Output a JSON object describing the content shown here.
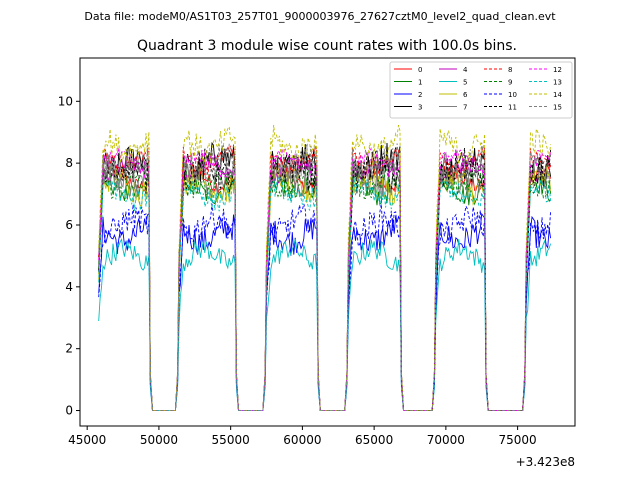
{
  "chart_data": {
    "type": "line",
    "suptitle": "Data file: modeM0/AS1T03_257T01_9000003976_27627cztM0_level2_quad_clean.evt",
    "title": "Quadrant 3 module wise count rates with 100.0s bins.",
    "xlabel": "",
    "ylabel": "",
    "x_offset_label": "+3.423e8",
    "xlim": [
      44500,
      79000
    ],
    "ylim": [
      -0.5,
      11.4
    ],
    "x_ticks": [
      45000,
      50000,
      55000,
      60000,
      65000,
      70000,
      75000
    ],
    "x_tick_labels": [
      "45000",
      "50000",
      "55000",
      "60000",
      "65000",
      "70000",
      "75000"
    ],
    "y_ticks": [
      0,
      2,
      4,
      6,
      8,
      10
    ],
    "y_tick_labels": [
      "0",
      "2",
      "4",
      "6",
      "8",
      "10"
    ],
    "segments": [
      {
        "start": 45800,
        "end": 49300
      },
      {
        "start": 51400,
        "end": 55300
      },
      {
        "start": 57500,
        "end": 61000
      },
      {
        "start": 63200,
        "end": 66800
      },
      {
        "start": 69300,
        "end": 72700
      },
      {
        "start": 75600,
        "end": 77300
      }
    ],
    "series": [
      {
        "name": "0",
        "color": "#ff0000",
        "dash": "solid",
        "level": 7.5
      },
      {
        "name": "1",
        "color": "#008000",
        "dash": "solid",
        "level": 7.2
      },
      {
        "name": "2",
        "color": "#0000ff",
        "dash": "solid",
        "level": 5.7
      },
      {
        "name": "3",
        "color": "#000000",
        "dash": "solid",
        "level": 8.0
      },
      {
        "name": "4",
        "color": "#bf00bf",
        "dash": "solid",
        "level": 7.8
      },
      {
        "name": "5",
        "color": "#00bfbf",
        "dash": "solid",
        "level": 5.0
      },
      {
        "name": "6",
        "color": "#bfbf00",
        "dash": "solid",
        "level": 7.3
      },
      {
        "name": "7",
        "color": "#808080",
        "dash": "solid",
        "level": 7.6
      },
      {
        "name": "8",
        "color": "#ff0000",
        "dash": "dashed",
        "level": 8.1
      },
      {
        "name": "9",
        "color": "#008000",
        "dash": "dashed",
        "level": 7.4
      },
      {
        "name": "10",
        "color": "#0000ff",
        "dash": "dashed",
        "level": 6.0
      },
      {
        "name": "11",
        "color": "#000000",
        "dash": "dashed",
        "level": 7.7
      },
      {
        "name": "12",
        "color": "#ff00ff",
        "dash": "dashed",
        "level": 8.0
      },
      {
        "name": "13",
        "color": "#00bfbf",
        "dash": "dashed",
        "level": 7.0
      },
      {
        "name": "14",
        "color": "#bfbf00",
        "dash": "dashed",
        "level": 8.6
      },
      {
        "name": "15",
        "color": "#808080",
        "dash": "dashed",
        "level": 7.9
      }
    ]
  }
}
